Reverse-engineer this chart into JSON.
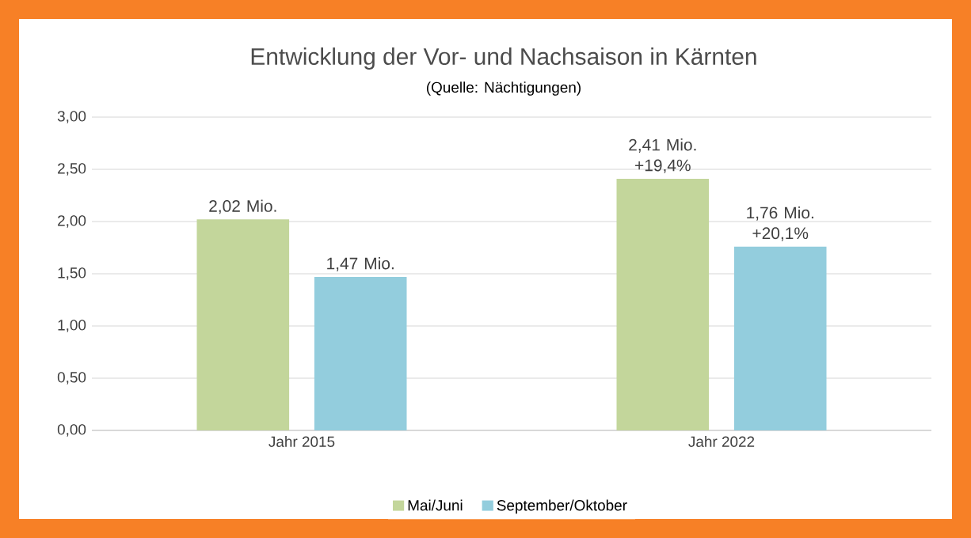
{
  "chart_data": {
    "type": "bar",
    "title": "Entwicklung der Vor- und Nachsaison in Kärnten",
    "subtitle": "(Quelle: Nächtigungen)",
    "categories": [
      "Jahr 2015",
      "Jahr 2022"
    ],
    "series": [
      {
        "name": "Mai/Juni",
        "color": "#c3d69b",
        "values": [
          2.02,
          2.41
        ],
        "value_labels": [
          "2,02 Mio.",
          "2,41 Mio. +19,4%"
        ]
      },
      {
        "name": "September/Oktober",
        "color": "#93cddd",
        "values": [
          1.47,
          1.76
        ],
        "value_labels": [
          "1,47 Mio.",
          "1,76 Mio. +20,1%"
        ]
      }
    ],
    "ylim": [
      0,
      3
    ],
    "yticks": [
      {
        "value": 0,
        "label": "0,00"
      },
      {
        "value": 0.5,
        "label": "0,50"
      },
      {
        "value": 1,
        "label": "1,00"
      },
      {
        "value": 1.5,
        "label": "1,50"
      },
      {
        "value": 2,
        "label": "2,00"
      },
      {
        "value": 2.5,
        "label": "2,50"
      },
      {
        "value": 3,
        "label": "3,00"
      }
    ],
    "grid": "y",
    "legend": "bottom"
  }
}
